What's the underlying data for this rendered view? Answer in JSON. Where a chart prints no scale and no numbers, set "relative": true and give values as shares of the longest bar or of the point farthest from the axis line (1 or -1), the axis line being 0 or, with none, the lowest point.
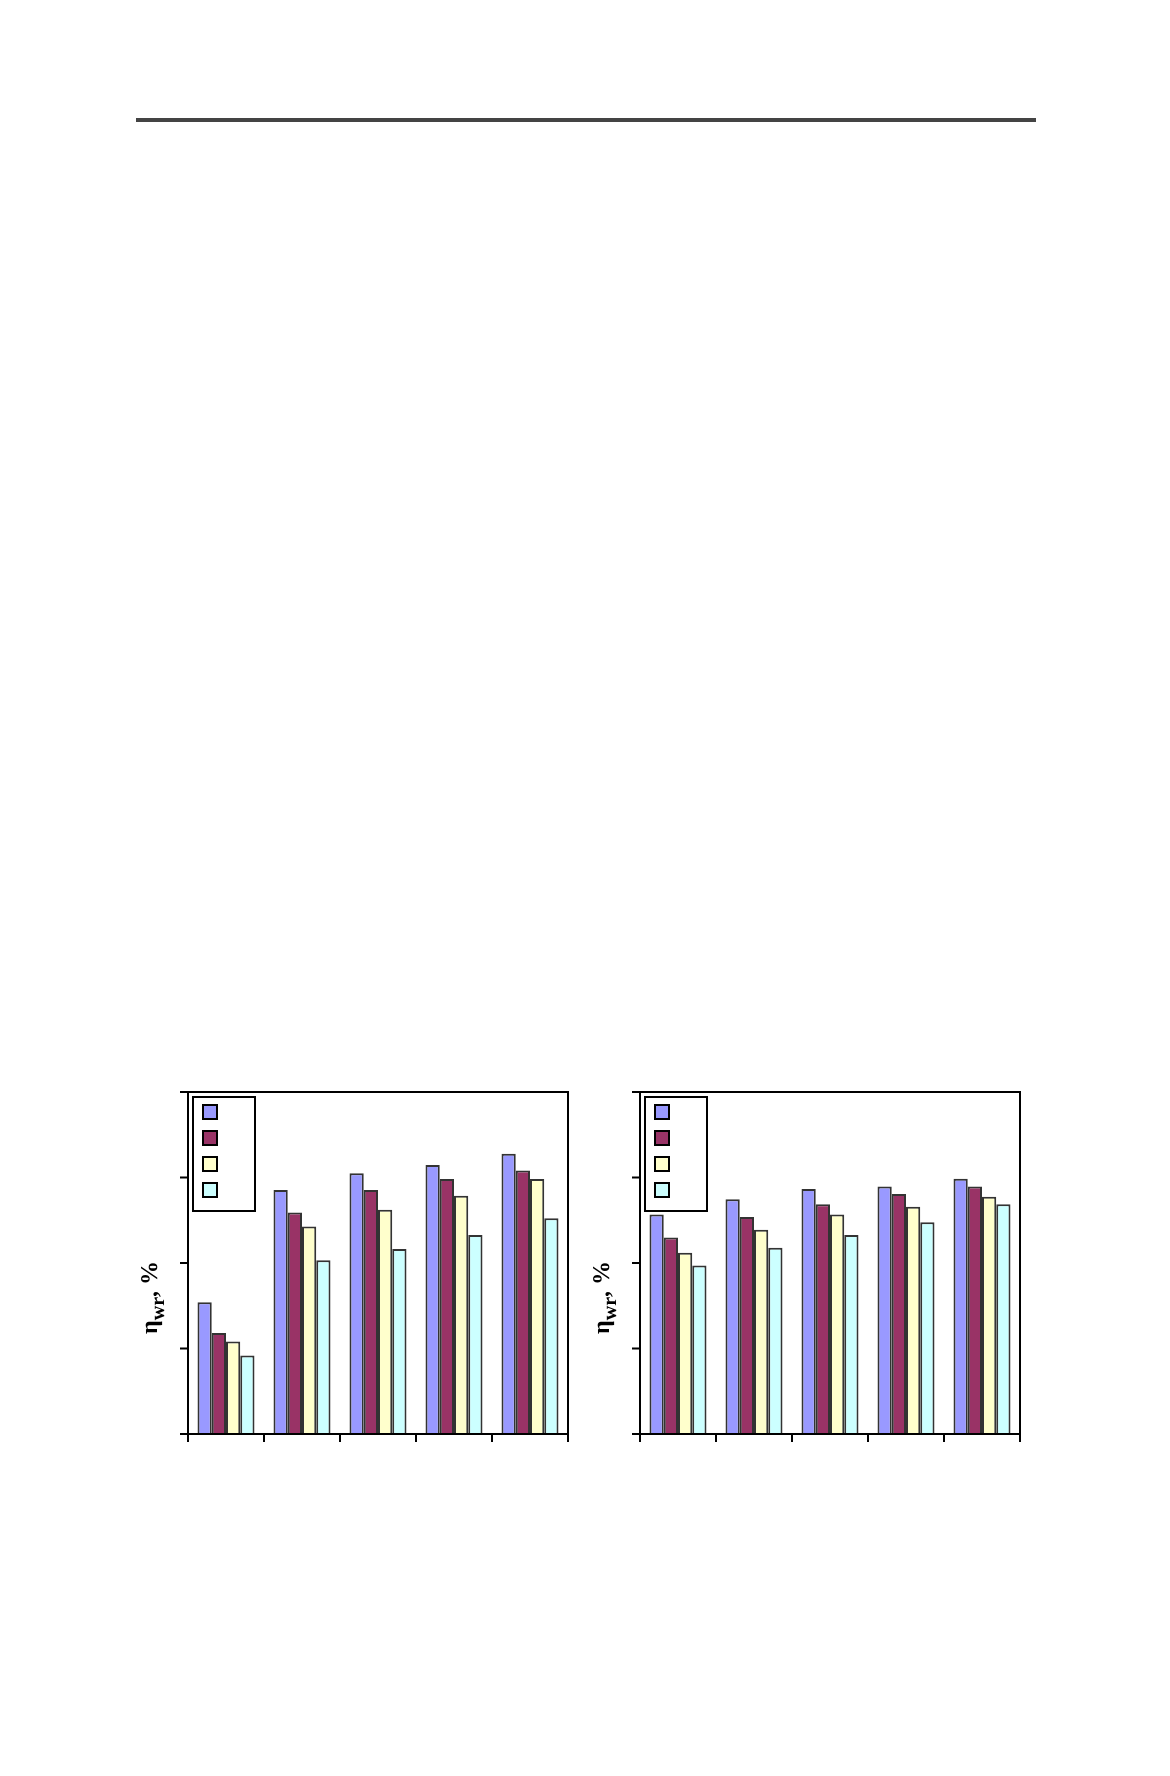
{
  "chart_data": [
    {
      "type": "bar",
      "relative": true,
      "ylabel": "η$_{wr}$, %",
      "categories": [
        null,
        null,
        null,
        null,
        null
      ],
      "series": [
        {
          "color": "#9999ff",
          "values": [
            0.47,
            0.87,
            0.93,
            0.96,
            1
          ]
        },
        {
          "color": "#993366",
          "values": [
            0.36,
            0.79,
            0.87,
            0.91,
            0.94
          ]
        },
        {
          "color": "#ffffcc",
          "values": [
            0.33,
            0.74,
            0.8,
            0.85,
            0.91
          ]
        },
        {
          "color": "#ccffff",
          "values": [
            0.28,
            0.62,
            0.66,
            0.71,
            0.77
          ]
        }
      ]
    },
    {
      "type": "bar",
      "relative": true,
      "ylabel": "η$_{wr}$, %",
      "categories": [
        null,
        null,
        null,
        null,
        null
      ],
      "series": [
        {
          "color": "#9999ff",
          "values": [
            0.86,
            0.92,
            0.96,
            0.97,
            1
          ]
        },
        {
          "color": "#993366",
          "values": [
            0.77,
            0.85,
            0.9,
            0.94,
            0.97
          ]
        },
        {
          "color": "#ffffcc",
          "values": [
            0.71,
            0.8,
            0.86,
            0.89,
            0.93
          ]
        },
        {
          "color": "#ccffff",
          "values": [
            0.66,
            0.73,
            0.78,
            0.83,
            0.9
          ]
        }
      ]
    }
  ]
}
